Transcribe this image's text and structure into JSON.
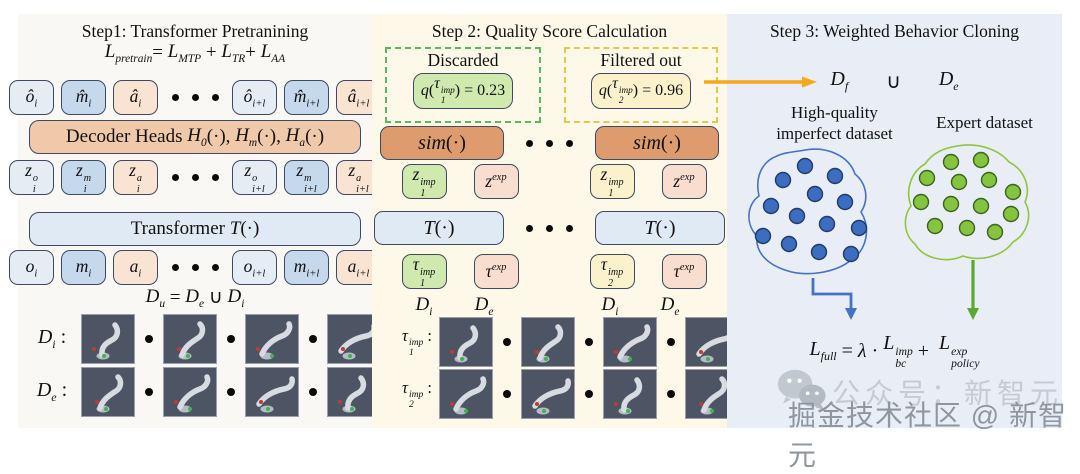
{
  "colors": {
    "panel_left_bg": "#faf8f4",
    "panel_mid_bg": "#fdf8e8",
    "panel_right_bg": "#e9edf6",
    "token_border": "#3e4a61",
    "token_light": "#e6ecf3",
    "token_blue": "#c6d8ec",
    "token_peach": "#f9e3d3",
    "token_green": "#cfe9ae",
    "token_yellow": "#fbf2cc",
    "token_pink": "#f9ded0",
    "decoder_box": "#f0c9aa",
    "transformer_box": "#e0eaf4",
    "sim_box": "#dd9b6e",
    "dashed_green": "#5cb85c",
    "dashed_yellow": "#e3c84e",
    "arrow_orange": "#f5a81c",
    "blob_blue": "#4472c4",
    "blob_green": "#8fc63f",
    "robot_bg": "#4d5565",
    "watermark_light": "#c6cbd3",
    "watermark_dark": "#8f969f"
  },
  "left": {
    "title": "Step1: Transformer Pretranining",
    "loss_formula": [
      {
        "t": "L",
        "sub": "pretrain"
      },
      {
        "t": "= ",
        "op": true
      },
      {
        "t": "L",
        "sub": "MTP"
      },
      {
        "t": " + ",
        "op": true
      },
      {
        "t": "L",
        "sub": "TR"
      },
      {
        "t": "+ ",
        "op": true
      },
      {
        "t": "L",
        "sub": "AA"
      }
    ],
    "pred_tokens": [
      {
        "base": "ô",
        "sub": "i",
        "color": "light"
      },
      {
        "base": "m̂",
        "sub": "i",
        "color": "blue"
      },
      {
        "base": "â",
        "sub": "i",
        "color": "peach"
      },
      {
        "dots": true
      },
      {
        "base": "ô",
        "sub": "i+l",
        "color": "light"
      },
      {
        "base": "m̂",
        "sub": "i+l",
        "color": "blue"
      },
      {
        "base": "â",
        "sub": "i+l",
        "color": "peach"
      }
    ],
    "decoder_label": [
      {
        "t": "Decoder Heads ",
        "op": true
      },
      {
        "t": "H",
        "sub": "0"
      },
      {
        "t": "(·), ",
        "op": true
      },
      {
        "t": "H",
        "sub": "m"
      },
      {
        "t": "(·), ",
        "op": true
      },
      {
        "t": "H",
        "sub": "a"
      },
      {
        "t": "(·)",
        "op": true
      }
    ],
    "latent_tokens": [
      {
        "base": "z",
        "sub": "i",
        "sup": "o",
        "color": "light"
      },
      {
        "base": "z",
        "sub": "i",
        "sup": "m",
        "color": "blue"
      },
      {
        "base": "z",
        "sub": "i",
        "sup": "a",
        "color": "peach"
      },
      {
        "dots": true
      },
      {
        "base": "z",
        "sub": "i+l",
        "sup": "o",
        "color": "light"
      },
      {
        "base": "z",
        "sub": "i+l",
        "sup": "m",
        "color": "blue"
      },
      {
        "base": "z",
        "sub": "i+l",
        "sup": "a",
        "color": "peach"
      }
    ],
    "transformer_label": [
      {
        "t": "Transformer ",
        "op": true
      },
      {
        "t": "T"
      },
      {
        "t": "(·)",
        "op": true
      }
    ],
    "input_tokens": [
      {
        "base": "o",
        "sub": "i",
        "color": "light"
      },
      {
        "base": "m",
        "sub": "i",
        "color": "blue"
      },
      {
        "base": "a",
        "sub": "i",
        "color": "peach"
      },
      {
        "dots": true
      },
      {
        "base": "o",
        "sub": "i+l",
        "color": "light"
      },
      {
        "base": "m",
        "sub": "i+l",
        "color": "blue"
      },
      {
        "base": "a",
        "sub": "i+l",
        "color": "peach"
      }
    ],
    "union_formula": [
      {
        "t": "D",
        "sub": "u"
      },
      {
        "t": " = ",
        "op": true
      },
      {
        "t": "D",
        "sub": "e"
      },
      {
        "t": " ∪ ",
        "op": true
      },
      {
        "t": "D",
        "sub": "i"
      }
    ],
    "rows": [
      {
        "label": [
          {
            "t": "D",
            "sub": "i"
          },
          {
            "t": " :",
            "op": true
          }
        ],
        "frames": 4
      },
      {
        "label": [
          {
            "t": "D",
            "sub": "e"
          },
          {
            "t": " :",
            "op": true
          }
        ],
        "frames": 4
      }
    ]
  },
  "middle": {
    "title": "Step 2: Quality Score Calculation",
    "discarded": {
      "label": "Discarded",
      "score": [
        {
          "t": "q"
        },
        {
          "t": "(",
          "op": true
        },
        {
          "t": "τ",
          "sup": "imp",
          "sub": "1"
        },
        {
          "t": ")",
          "op": true
        },
        {
          "t": " = 0.23",
          "op": true
        }
      ]
    },
    "filtered": {
      "label": "Filtered out",
      "score": [
        {
          "t": "q"
        },
        {
          "t": "(",
          "op": true
        },
        {
          "t": "τ",
          "sup": "imp",
          "sub": "2"
        },
        {
          "t": ")",
          "op": true
        },
        {
          "t": " = 0.96",
          "op": true
        }
      ]
    },
    "sim_label": [
      {
        "t": "sim"
      },
      {
        "t": "(·)",
        "op": true
      }
    ],
    "t_label": [
      {
        "t": "T"
      },
      {
        "t": "(·)",
        "op": true
      }
    ],
    "z_groups": [
      [
        {
          "base": "z",
          "sub": "1",
          "sup": "imp",
          "color": "green"
        },
        {
          "base": "z",
          "sup": "exp",
          "color": "pink"
        }
      ],
      [
        {
          "base": "z",
          "sub": "1",
          "sup": "imp",
          "color": "yellow"
        },
        {
          "base": "z",
          "sup": "exp",
          "color": "pink"
        }
      ]
    ],
    "tau_groups": [
      [
        {
          "base": "τ",
          "sub": "1",
          "sup": "imp",
          "color": "green"
        },
        {
          "base": "τ",
          "sup": "exp",
          "color": "pink"
        }
      ],
      [
        {
          "base": "τ",
          "sub": "2",
          "sup": "imp",
          "color": "yellow"
        },
        {
          "base": "τ",
          "sup": "exp",
          "color": "pink"
        }
      ]
    ],
    "d_labels": [
      [
        {
          "t": "D",
          "sub": "i"
        }
      ],
      [
        {
          "t": "D",
          "sub": "e"
        }
      ],
      [
        {
          "t": "D",
          "sub": "i"
        }
      ],
      [
        {
          "t": "D",
          "sub": "e"
        }
      ]
    ],
    "rows": [
      {
        "label": [
          {
            "t": "τ",
            "sup": "imp",
            "sub": "1"
          },
          {
            "t": " :",
            "op": true
          }
        ],
        "frames": 4
      },
      {
        "label": [
          {
            "t": "τ",
            "sup": "imp",
            "sub": "2"
          },
          {
            "t": " :",
            "op": true
          }
        ],
        "frames": 4
      }
    ]
  },
  "right": {
    "title": "Step 3: Weighted Behavior Cloning",
    "df": [
      {
        "t": "D",
        "sub": "f"
      }
    ],
    "union": "∪",
    "de": [
      {
        "t": "D",
        "sub": "e"
      }
    ],
    "caption_imperfect": [
      "High-quality",
      "imperfect dataset"
    ],
    "caption_expert": "Expert dataset",
    "imperfect_blob": {
      "dot_count": 13
    },
    "expert_blob": {
      "dot_count": 13
    },
    "final_formula": [
      {
        "t": "L",
        "sub": "full"
      },
      {
        "t": " = ",
        "op": true
      },
      {
        "t": "λ"
      },
      {
        "t": " · ",
        "op": true
      },
      {
        "t": "L",
        "sub": "bc",
        "sup": "imp"
      },
      {
        "t": " +  ",
        "op": true
      },
      {
        "t": "L",
        "sub": "policy",
        "sup": "exp"
      }
    ]
  },
  "watermark": {
    "light": "公众号：新智元",
    "dark": "掘金技术社区 @ 新智元"
  }
}
